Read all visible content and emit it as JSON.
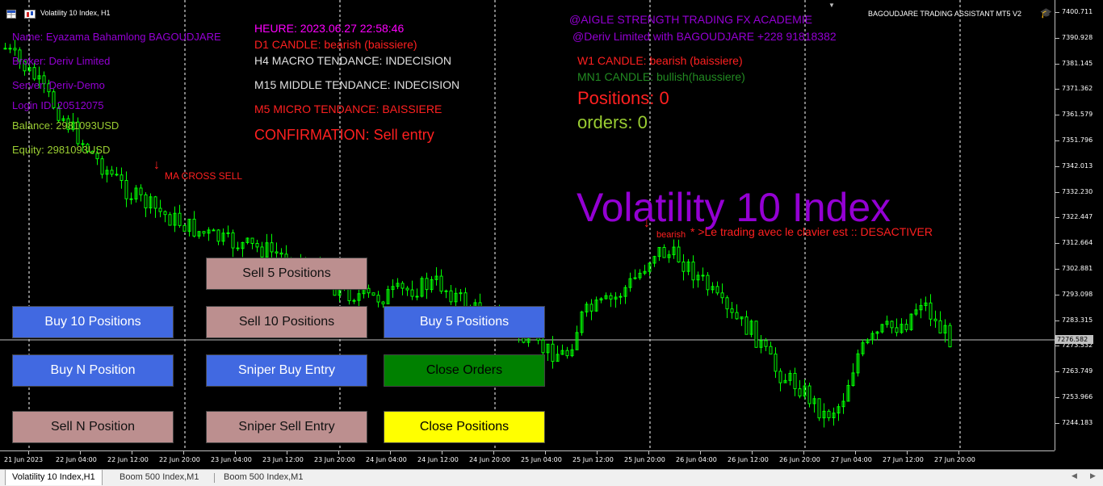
{
  "chart_title": "Volatility 10 Index, H1",
  "colors": {
    "bg": "#000000",
    "candle": "#00ff00",
    "grid": "#ffffff",
    "buy": "#4169e1",
    "sell": "#bc8f8f",
    "close_orders": "#008000",
    "close_positions": "#ffff00"
  },
  "account": {
    "name": "Name: Eyazama Bahamlong BAGOUDJARE",
    "broker": "Broker: Deriv Limited",
    "server": "Server: Deriv-Demo",
    "login": "Login ID: 20512075",
    "balance": "Balance: 2981093USD",
    "equity": "Equity: 2981093USD"
  },
  "analysis": {
    "heure": "HEURE: 2023.06.27 22:58:46",
    "d1": "D1 CANDLE:  bearish (baissiere)",
    "h4": "H4 MACRO TENDANCE:  INDECISION",
    "m15": "M15 MIDDLE TENDANCE:  INDECISION",
    "m5": "M5 MICRO TENDANCE: BAISSIERE",
    "confirmation": "CONFIRMATION: Sell entry"
  },
  "header_right": {
    "academy": "@AIGLE STRENGTH TRADING FX ACADEMIE",
    "contact": "@Deriv Limited with BAGOUDJARE +228 91818382",
    "w1": "W1 CANDLE:  bearish (baissiere)",
    "mn1": "MN1 CANDLE:  bullish(haussiere)",
    "positions": "Positions: 0",
    "orders": "orders: 0",
    "assistant": "BAGOUDJARE TRADING ASSISTANT MT5 V2"
  },
  "symbol_large": "Volatility 10 Index",
  "signals": {
    "ma_cross": "MA CROSS SELL",
    "bearish": "bearish",
    "keyboard": "* >Le trading avec le clavier est :: DESACTIVER"
  },
  "buttons": {
    "sell5": "Sell 5 Positions",
    "buy10": "Buy 10 Positions",
    "sell10": "Sell 10 Positions",
    "buy5": "Buy 5 Positions",
    "buyN": "Buy N Position",
    "sniper_buy": "Sniper Buy Entry",
    "close_orders": "Close Orders",
    "sellN": "Sell N Position",
    "sniper_sell": "Sniper Sell Entry",
    "close_positions": "Close Positions"
  },
  "price_scale": [
    "7400.711",
    "7390.928",
    "7381.145",
    "7371.362",
    "7361.579",
    "7351.796",
    "7342.013",
    "7332.230",
    "7322.447",
    "7312.664",
    "7302.881",
    "7293.098",
    "7283.315",
    "7273.532",
    "7263.749",
    "7253.966",
    "7244.183"
  ],
  "current_price": "7276.582",
  "time_axis": [
    "21 Jun 2023",
    "22 Jun 04:00",
    "22 Jun 12:00",
    "22 Jun 20:00",
    "23 Jun 04:00",
    "23 Jun 12:00",
    "23 Jun 20:00",
    "24 Jun 04:00",
    "24 Jun 12:00",
    "24 Jun 20:00",
    "25 Jun 04:00",
    "25 Jun 12:00",
    "25 Jun 20:00",
    "26 Jun 04:00",
    "26 Jun 12:00",
    "26 Jun 20:00",
    "27 Jun 04:00",
    "27 Jun 12:00",
    "27 Jun 20:00"
  ],
  "tabs": [
    "Volatility 10 Index,H1",
    "Boom 500 Index,M1",
    "Boom 500 Index,M1"
  ]
}
